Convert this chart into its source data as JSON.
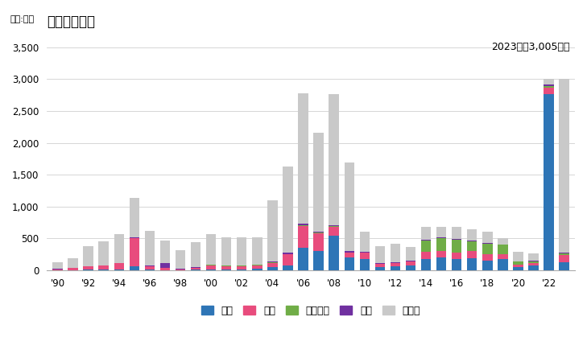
{
  "title": "輸出量の推移",
  "unit_label": "単位:トン",
  "annotation": "2023年：3,005トン",
  "years": [
    1990,
    1991,
    1992,
    1993,
    1994,
    1995,
    1996,
    1997,
    1998,
    1999,
    2000,
    2001,
    2002,
    2003,
    2004,
    2005,
    2006,
    2007,
    2008,
    2009,
    2010,
    2011,
    2012,
    2013,
    2014,
    2015,
    2016,
    2017,
    2018,
    2019,
    2020,
    2021,
    2022,
    2023
  ],
  "thai": [
    5,
    5,
    10,
    15,
    20,
    60,
    15,
    5,
    5,
    10,
    20,
    20,
    20,
    30,
    50,
    80,
    350,
    300,
    550,
    200,
    180,
    50,
    60,
    80,
    180,
    200,
    180,
    190,
    150,
    180,
    50,
    80,
    2760,
    130
  ],
  "taiwan": [
    15,
    35,
    50,
    60,
    90,
    450,
    55,
    40,
    10,
    35,
    60,
    50,
    50,
    50,
    70,
    170,
    350,
    280,
    130,
    80,
    100,
    50,
    50,
    60,
    110,
    110,
    100,
    110,
    100,
    70,
    35,
    40,
    110,
    110
  ],
  "vietnam": [
    0,
    0,
    0,
    0,
    0,
    0,
    0,
    0,
    0,
    0,
    5,
    5,
    5,
    5,
    5,
    10,
    10,
    10,
    10,
    5,
    5,
    5,
    5,
    5,
    180,
    190,
    200,
    150,
    170,
    150,
    50,
    25,
    25,
    25
  ],
  "hongkong": [
    5,
    5,
    10,
    5,
    10,
    10,
    10,
    70,
    8,
    8,
    8,
    8,
    8,
    8,
    10,
    20,
    20,
    20,
    15,
    15,
    10,
    8,
    8,
    8,
    15,
    15,
    15,
    15,
    15,
    10,
    8,
    8,
    15,
    15
  ],
  "other": [
    100,
    145,
    310,
    370,
    450,
    620,
    540,
    350,
    290,
    390,
    470,
    430,
    430,
    430,
    970,
    1350,
    2050,
    1550,
    2060,
    1390,
    310,
    270,
    300,
    210,
    200,
    165,
    185,
    185,
    175,
    90,
    155,
    110,
    90,
    2725
  ],
  "colors": {
    "thai": "#2e75b6",
    "taiwan": "#e84c7d",
    "vietnam": "#70ad47",
    "hongkong": "#7030a0",
    "other": "#c9c9c9"
  },
  "legend_labels": [
    "タイ",
    "台湾",
    "ベトナム",
    "香港",
    "その他"
  ],
  "ylim": [
    0,
    3700
  ],
  "yticks": [
    0,
    500,
    1000,
    1500,
    2000,
    2500,
    3000,
    3500
  ]
}
